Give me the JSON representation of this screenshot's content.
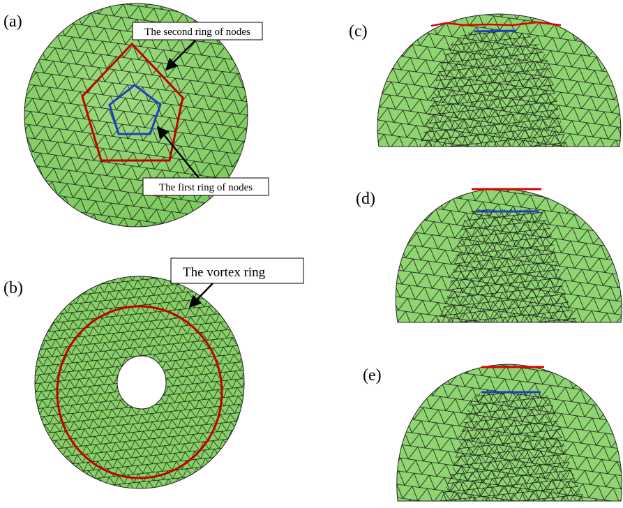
{
  "panels": [
    {
      "label": "(a)",
      "annotations": [
        "The second ring of nodes",
        "The first ring of nodes"
      ]
    },
    {
      "label": "(b)",
      "annotations": [
        "The vortex ring"
      ]
    },
    {
      "label": "(c)"
    },
    {
      "label": "(d)"
    },
    {
      "label": "(e)"
    }
  ]
}
